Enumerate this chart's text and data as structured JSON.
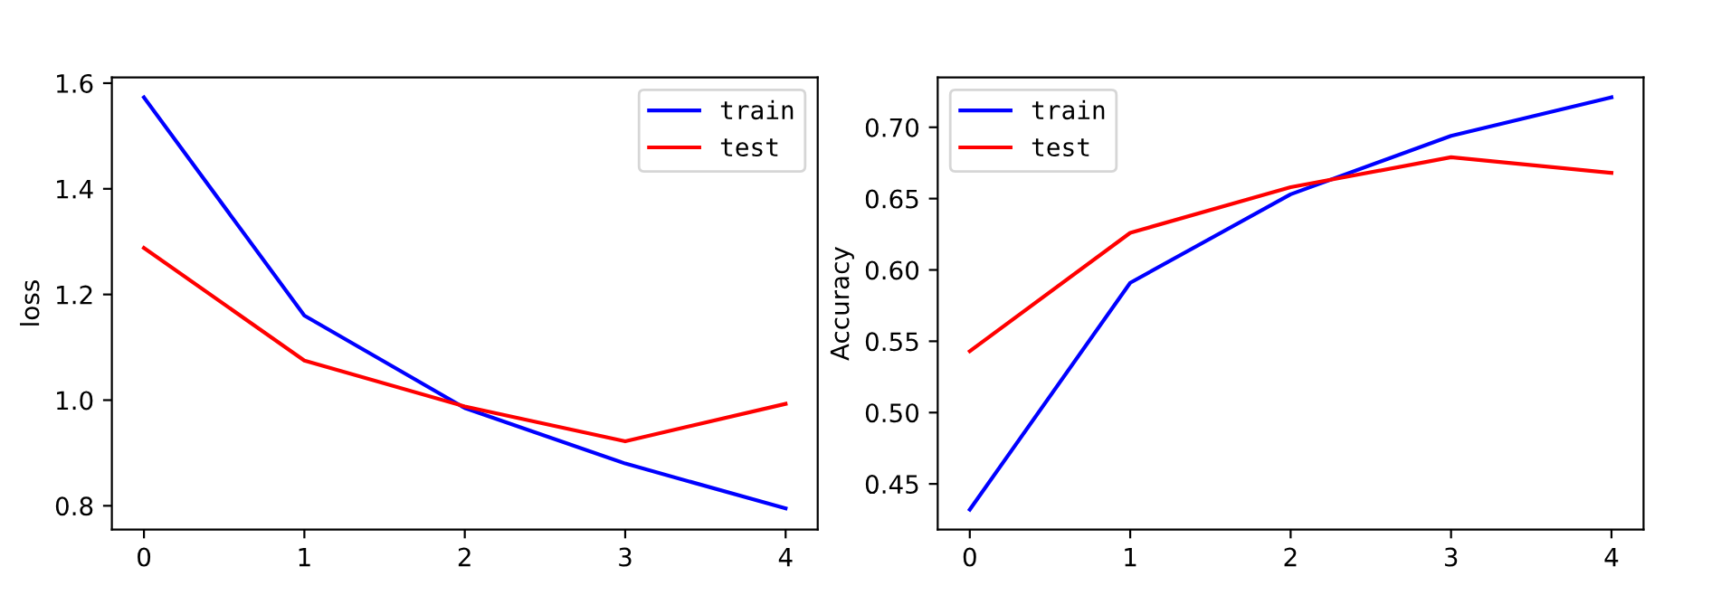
{
  "chart_data": [
    {
      "type": "line",
      "ylabel": "loss",
      "x": [
        0,
        1,
        2,
        3,
        4
      ],
      "xlim": [
        -0.2,
        4.2
      ],
      "xticks": [
        0,
        1,
        2,
        3,
        4
      ],
      "ylim": [
        0.755,
        1.611
      ],
      "yticks": [
        {
          "value": 0.8,
          "label": "0.8"
        },
        {
          "value": 1.0,
          "label": "1.0"
        },
        {
          "value": 1.2,
          "label": "1.2"
        },
        {
          "value": 1.4,
          "label": "1.4"
        },
        {
          "value": 1.6,
          "label": "1.6"
        }
      ],
      "legend": "upper right",
      "grid": false,
      "series": [
        {
          "name": "train",
          "color": "#0000ff",
          "values": [
            1.573,
            1.16,
            0.985,
            0.88,
            0.795
          ]
        },
        {
          "name": "test",
          "color": "#ff0000",
          "values": [
            1.288,
            1.075,
            0.988,
            0.922,
            0.993
          ]
        }
      ]
    },
    {
      "type": "line",
      "ylabel": "Accuracy",
      "x": [
        0,
        1,
        2,
        3,
        4
      ],
      "xlim": [
        -0.2,
        4.2
      ],
      "xticks": [
        0,
        1,
        2,
        3,
        4
      ],
      "ylim": [
        0.418,
        0.735
      ],
      "yticks": [
        {
          "value": 0.45,
          "label": "0.45"
        },
        {
          "value": 0.5,
          "label": "0.50"
        },
        {
          "value": 0.55,
          "label": "0.55"
        },
        {
          "value": 0.6,
          "label": "0.60"
        },
        {
          "value": 0.65,
          "label": "0.65"
        },
        {
          "value": 0.7,
          "label": "0.70"
        }
      ],
      "legend": "upper left",
      "grid": false,
      "series": [
        {
          "name": "train",
          "color": "#0000ff",
          "values": [
            0.432,
            0.591,
            0.653,
            0.694,
            0.721
          ]
        },
        {
          "name": "test",
          "color": "#ff0000",
          "values": [
            0.543,
            0.626,
            0.658,
            0.679,
            0.668
          ]
        }
      ]
    }
  ]
}
